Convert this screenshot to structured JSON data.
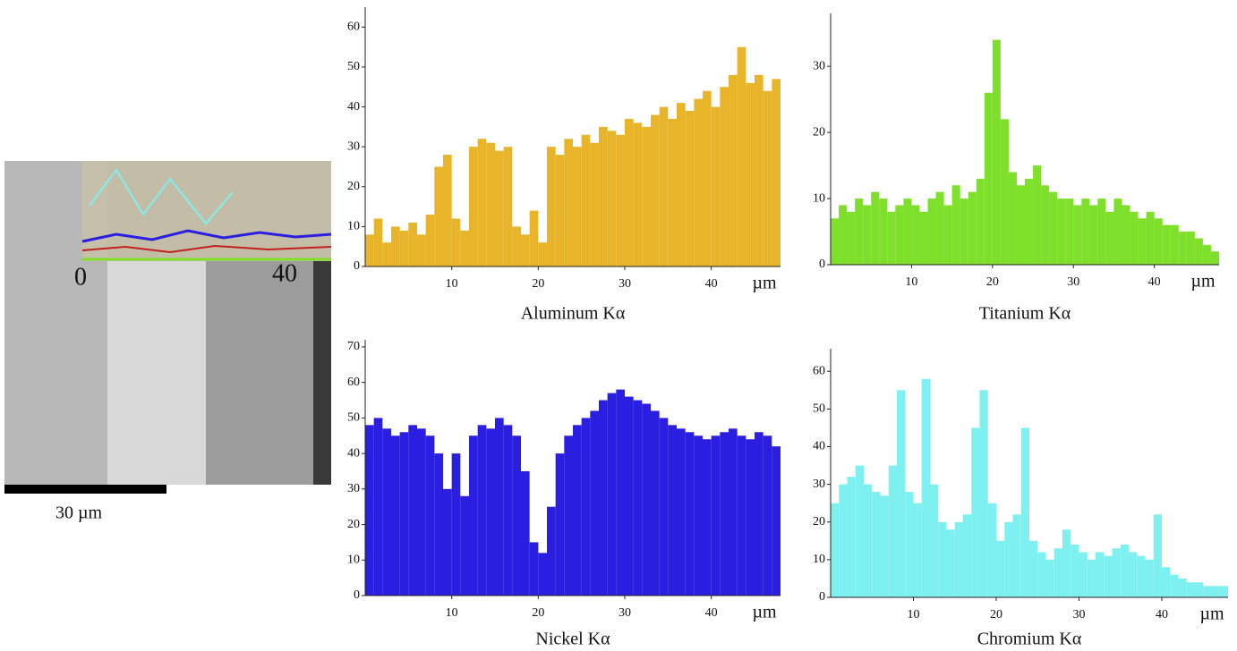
{
  "image": {
    "start_label": "0",
    "end_label": "40",
    "scale_bar": "30 µm"
  },
  "chart_data": [
    {
      "type": "bar",
      "title": "Aluminum Kα",
      "x_label": "µm",
      "color": "#e8b52a",
      "x": [
        0.5,
        1.5,
        2.5,
        3.5,
        4.5,
        5.5,
        6.5,
        7.5,
        8.5,
        9.5,
        10.5,
        11.5,
        12.5,
        13.5,
        14.5,
        15.5,
        16.5,
        17.5,
        18.5,
        19.5,
        20.5,
        21.5,
        22.5,
        23.5,
        24.5,
        25.5,
        26.5,
        27.5,
        28.5,
        29.5,
        30.5,
        31.5,
        32.5,
        33.5,
        34.5,
        35.5,
        36.5,
        37.5,
        38.5,
        39.5,
        40.5,
        41.5,
        42.5,
        43.5,
        44.5,
        45.5,
        46.5,
        47.5
      ],
      "values": [
        8,
        12,
        6,
        10,
        9,
        11,
        8,
        13,
        25,
        28,
        12,
        9,
        30,
        32,
        31,
        29,
        30,
        10,
        8,
        14,
        6,
        30,
        28,
        32,
        30,
        33,
        31,
        35,
        34,
        33,
        37,
        36,
        35,
        38,
        40,
        37,
        41,
        39,
        42,
        44,
        40,
        45,
        48,
        55,
        46,
        48,
        44,
        47
      ],
      "xlim": [
        0,
        48
      ],
      "ylim": [
        0,
        65
      ],
      "xticks": [
        10,
        20,
        30,
        40
      ],
      "yticks": [
        0,
        10,
        20,
        30,
        40,
        50,
        60
      ]
    },
    {
      "type": "bar",
      "title": "Titanium Kα",
      "x_label": "µm",
      "color": "#7ee02a",
      "x": [
        0.5,
        1.5,
        2.5,
        3.5,
        4.5,
        5.5,
        6.5,
        7.5,
        8.5,
        9.5,
        10.5,
        11.5,
        12.5,
        13.5,
        14.5,
        15.5,
        16.5,
        17.5,
        18.5,
        19.5,
        20.5,
        21.5,
        22.5,
        23.5,
        24.5,
        25.5,
        26.5,
        27.5,
        28.5,
        29.5,
        30.5,
        31.5,
        32.5,
        33.5,
        34.5,
        35.5,
        36.5,
        37.5,
        38.5,
        39.5,
        40.5,
        41.5,
        42.5,
        43.5,
        44.5,
        45.5,
        46.5,
        47.5
      ],
      "values": [
        7,
        9,
        8,
        10,
        9,
        11,
        10,
        8,
        9,
        10,
        9,
        8,
        10,
        11,
        9,
        12,
        10,
        11,
        13,
        26,
        34,
        22,
        14,
        12,
        13,
        15,
        12,
        11,
        10,
        10,
        9,
        10,
        9,
        10,
        8,
        10,
        9,
        8,
        7,
        8,
        7,
        6,
        6,
        5,
        5,
        4,
        3,
        2
      ],
      "xlim": [
        0,
        48
      ],
      "ylim": [
        0,
        38
      ],
      "xticks": [
        10,
        20,
        30,
        40
      ],
      "yticks": [
        0,
        10,
        20,
        30
      ]
    },
    {
      "type": "bar",
      "title": "Nickel Kα",
      "x_label": "µm",
      "color": "#2a1ee0",
      "x": [
        0.5,
        1.5,
        2.5,
        3.5,
        4.5,
        5.5,
        6.5,
        7.5,
        8.5,
        9.5,
        10.5,
        11.5,
        12.5,
        13.5,
        14.5,
        15.5,
        16.5,
        17.5,
        18.5,
        19.5,
        20.5,
        21.5,
        22.5,
        23.5,
        24.5,
        25.5,
        26.5,
        27.5,
        28.5,
        29.5,
        30.5,
        31.5,
        32.5,
        33.5,
        34.5,
        35.5,
        36.5,
        37.5,
        38.5,
        39.5,
        40.5,
        41.5,
        42.5,
        43.5,
        44.5,
        45.5,
        46.5,
        47.5
      ],
      "values": [
        48,
        50,
        47,
        45,
        46,
        48,
        47,
        45,
        40,
        30,
        40,
        28,
        45,
        48,
        47,
        50,
        48,
        45,
        35,
        15,
        12,
        25,
        40,
        45,
        48,
        50,
        52,
        55,
        57,
        58,
        56,
        55,
        54,
        52,
        50,
        48,
        47,
        46,
        45,
        44,
        45,
        46,
        47,
        45,
        44,
        46,
        45,
        42
      ],
      "xlim": [
        0,
        48
      ],
      "ylim": [
        0,
        72
      ],
      "xticks": [
        10,
        20,
        30,
        40
      ],
      "yticks": [
        0,
        10,
        20,
        30,
        40,
        50,
        60,
        70
      ]
    },
    {
      "type": "bar",
      "title": "Chromium Kα",
      "x_label": "µm",
      "color": "#7ef0f0",
      "x": [
        0.5,
        1.5,
        2.5,
        3.5,
        4.5,
        5.5,
        6.5,
        7.5,
        8.5,
        9.5,
        10.5,
        11.5,
        12.5,
        13.5,
        14.5,
        15.5,
        16.5,
        17.5,
        18.5,
        19.5,
        20.5,
        21.5,
        22.5,
        23.5,
        24.5,
        25.5,
        26.5,
        27.5,
        28.5,
        29.5,
        30.5,
        31.5,
        32.5,
        33.5,
        34.5,
        35.5,
        36.5,
        37.5,
        38.5,
        39.5,
        40.5,
        41.5,
        42.5,
        43.5,
        44.5,
        45.5,
        46.5,
        47.5
      ],
      "values": [
        25,
        30,
        32,
        35,
        30,
        28,
        27,
        35,
        55,
        28,
        25,
        58,
        30,
        20,
        18,
        20,
        22,
        45,
        55,
        25,
        15,
        20,
        22,
        45,
        15,
        12,
        10,
        13,
        18,
        14,
        12,
        10,
        12,
        11,
        13,
        14,
        12,
        11,
        10,
        22,
        8,
        6,
        5,
        4,
        4,
        3,
        3,
        3
      ],
      "xlim": [
        0,
        48
      ],
      "ylim": [
        0,
        66
      ],
      "xticks": [
        10,
        20,
        30,
        40
      ],
      "yticks": [
        0,
        10,
        20,
        30,
        40,
        50,
        60
      ]
    }
  ]
}
